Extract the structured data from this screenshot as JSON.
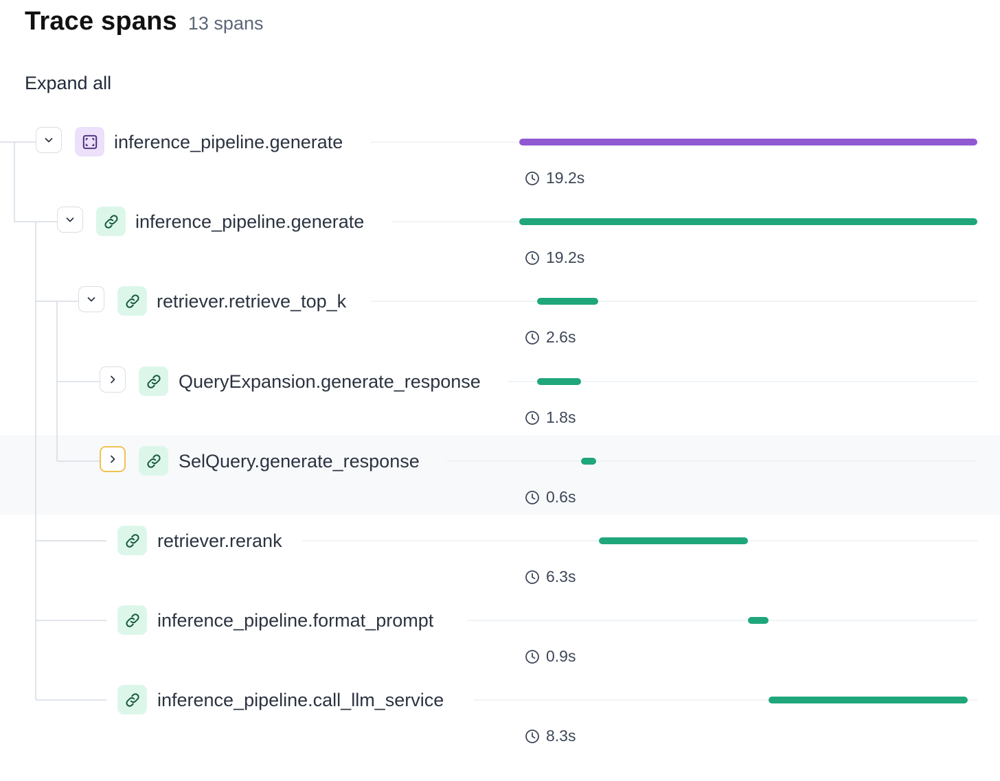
{
  "header": {
    "title": "Trace spans",
    "count": "13 spans"
  },
  "toolbar": {
    "expand_all": "Expand all"
  },
  "colors": {
    "purple": "#9059d2",
    "green": "#1fa67a",
    "focus": "#f2c14e"
  },
  "spans": [
    {
      "name": "inference_pipeline.generate",
      "duration": "19.2s",
      "icon": "frame-icon",
      "color": "purple",
      "toggle": "expanded"
    },
    {
      "name": "inference_pipeline.generate",
      "duration": "19.2s",
      "icon": "link-icon",
      "color": "green",
      "toggle": "expanded"
    },
    {
      "name": "retriever.retrieve_top_k",
      "duration": "2.6s",
      "icon": "link-icon",
      "color": "green",
      "toggle": "expanded"
    },
    {
      "name": "QueryExpansion.generate_response",
      "duration": "1.8s",
      "icon": "link-icon",
      "color": "green",
      "toggle": "collapsed"
    },
    {
      "name": "SelQuery.generate_response",
      "duration": "0.6s",
      "icon": "link-icon",
      "color": "green",
      "toggle": "collapsed",
      "focused": true
    },
    {
      "name": "retriever.rerank",
      "duration": "6.3s",
      "icon": "link-icon",
      "color": "green",
      "toggle": "none"
    },
    {
      "name": "inference_pipeline.format_prompt",
      "duration": "0.9s",
      "icon": "link-icon",
      "color": "green",
      "toggle": "none"
    },
    {
      "name": "inference_pipeline.call_llm_service",
      "duration": "8.3s",
      "icon": "link-icon",
      "color": "green",
      "toggle": "none"
    }
  ]
}
